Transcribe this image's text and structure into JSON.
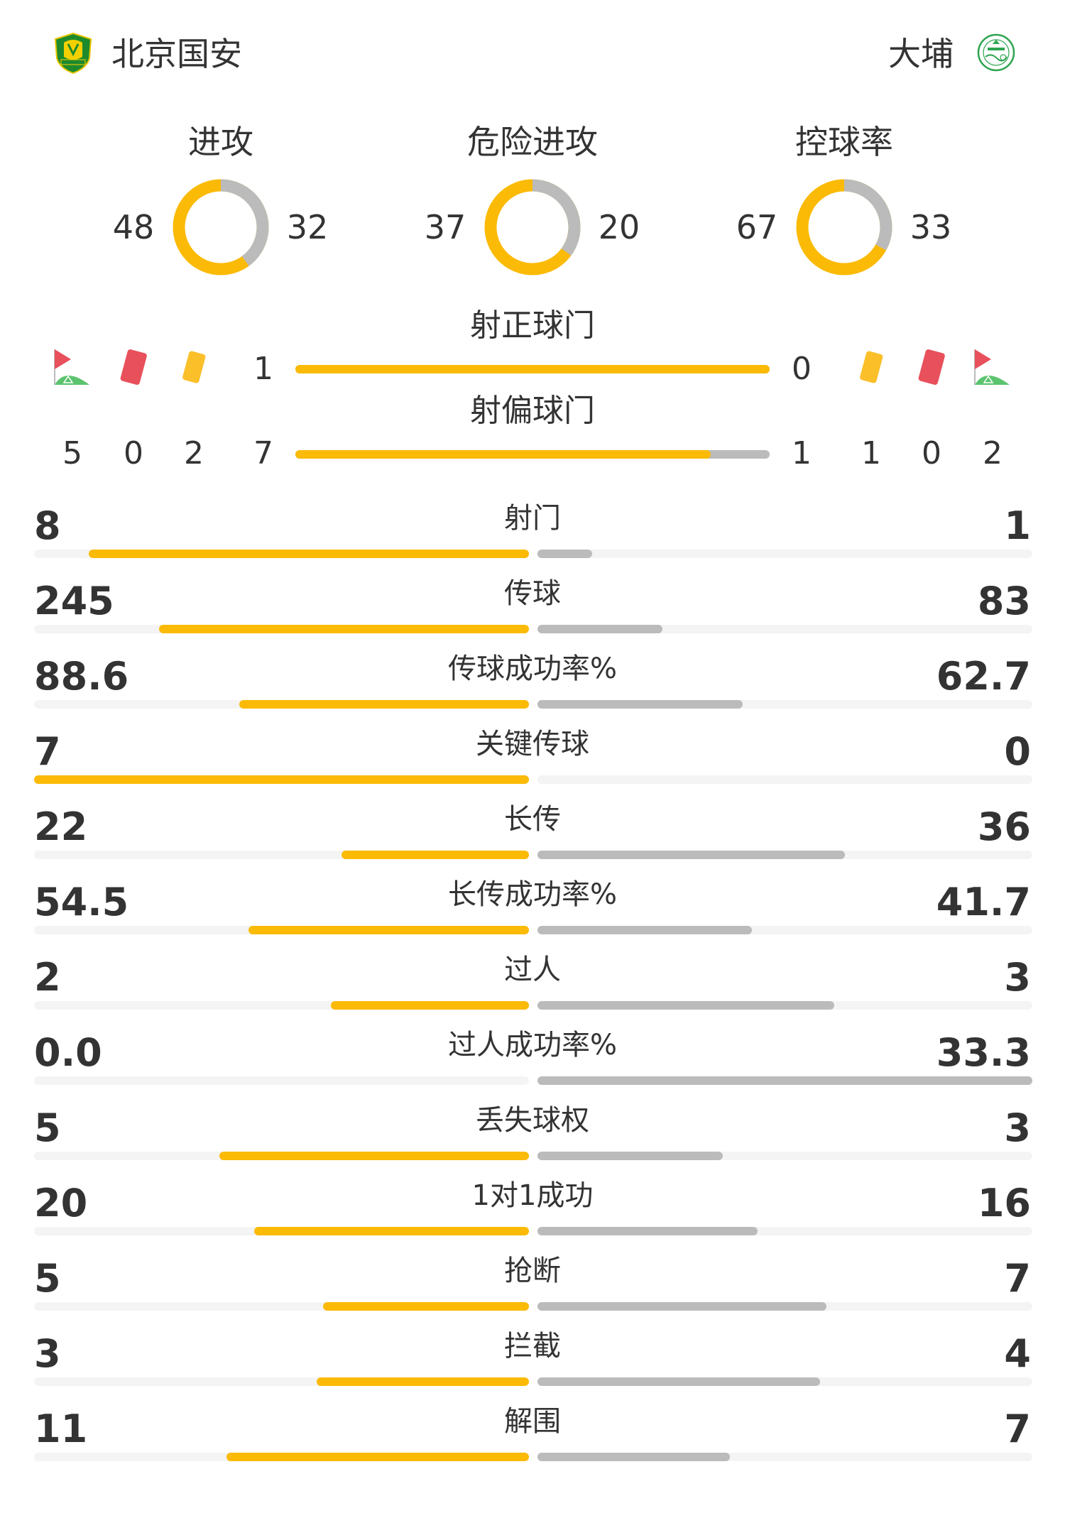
{
  "colors": {
    "home": "#fbba06",
    "away": "#bbbbbb",
    "track": "#f4f4f4",
    "text": "#333333",
    "red_card": "#e8505b",
    "yellow_card": "#fbbf2a",
    "corner_flag_green": "#5cc36f"
  },
  "header": {
    "home": {
      "name": "北京国安",
      "logo": "beijing-guoan-crest",
      "logo_text": "GUOAN"
    },
    "away": {
      "name": "大埔",
      "logo": "tai-po-crest",
      "logo_text": "大埔足球會"
    }
  },
  "donuts": [
    {
      "title": "进攻",
      "home": 48,
      "away": 32
    },
    {
      "title": "危险进攻",
      "home": 37,
      "away": 20
    },
    {
      "title": "控球率",
      "home": 67,
      "away": 33
    }
  ],
  "shots_on_target": {
    "label": "射正球门",
    "home": 1,
    "away": 0
  },
  "shots_off_target": {
    "label": "射偏球门",
    "home": 7,
    "away": 1
  },
  "discipline": {
    "home": {
      "corners": 5,
      "red_cards": 0,
      "yellow_cards": 2
    },
    "away": {
      "yellow_cards": 1,
      "red_cards": 0,
      "corners": 2
    },
    "icons": [
      "corner-flag-icon",
      "red-card-icon",
      "yellow-card-icon"
    ]
  },
  "stats": [
    {
      "label": "射门",
      "home": "8",
      "away": "1"
    },
    {
      "label": "传球",
      "home": "245",
      "away": "83"
    },
    {
      "label": "传球成功率%",
      "home": "88.6",
      "away": "62.7"
    },
    {
      "label": "关键传球",
      "home": "7",
      "away": "0"
    },
    {
      "label": "长传",
      "home": "22",
      "away": "36"
    },
    {
      "label": "长传成功率%",
      "home": "54.5",
      "away": "41.7"
    },
    {
      "label": "过人",
      "home": "2",
      "away": "3"
    },
    {
      "label": "过人成功率%",
      "home": "0.0",
      "away": "33.3"
    },
    {
      "label": "丢失球权",
      "home": "5",
      "away": "3"
    },
    {
      "label": "1对1成功",
      "home": "20",
      "away": "16"
    },
    {
      "label": "抢断",
      "home": "5",
      "away": "7"
    },
    {
      "label": "拦截",
      "home": "3",
      "away": "4"
    },
    {
      "label": "解围",
      "home": "11",
      "away": "7"
    }
  ]
}
